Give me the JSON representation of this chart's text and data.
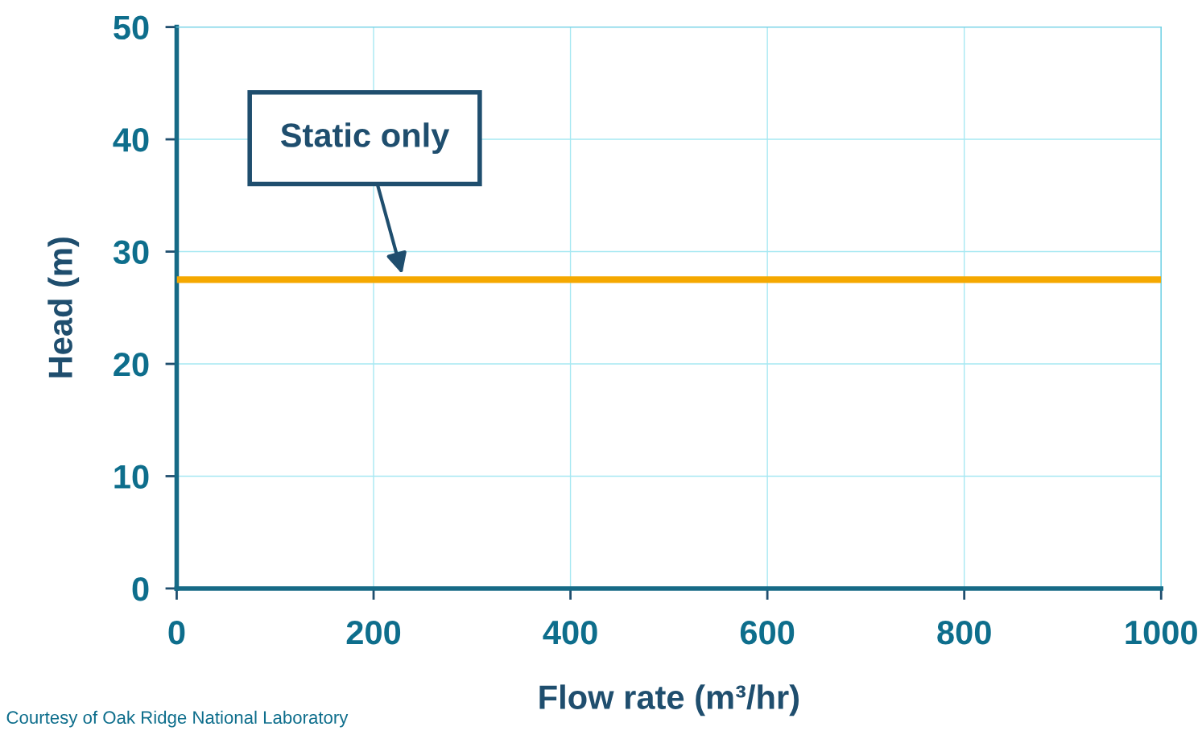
{
  "chart_data": {
    "type": "line",
    "xlabel": "Flow rate (m³/hr)",
    "ylabel": "Head (m)",
    "x": [
      0,
      1000
    ],
    "series": [
      {
        "color": "#f5a800",
        "values": [
          27.5,
          27.5
        ]
      }
    ],
    "xlim": [
      0,
      1000
    ],
    "xticks": [
      0,
      200,
      400,
      600,
      800,
      1000
    ],
    "ylim": [
      0,
      50
    ],
    "yticks": [
      0,
      10,
      20,
      30,
      40,
      50
    ],
    "grid": true,
    "marker": "none",
    "line_style": "solid",
    "annotations": [
      {
        "text": "Static only",
        "x": 229,
        "y": 28
      },
      "Courtesy of Oak Ridge National Laboratory"
    ]
  }
}
